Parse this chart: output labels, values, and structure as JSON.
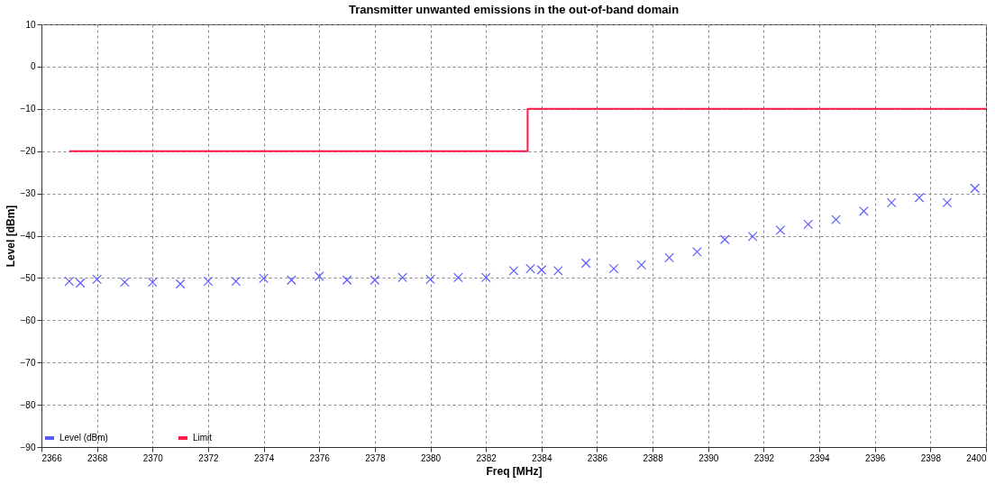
{
  "chart_data": {
    "type": "scatter",
    "title": "Transmitter unwanted emissions in the out-of-band domain",
    "xlabel": "Freq [MHz]",
    "ylabel": "Level [dBm]",
    "xlim": [
      2366,
      2400
    ],
    "xticks": [
      2366,
      2368,
      2370,
      2372,
      2374,
      2376,
      2378,
      2380,
      2382,
      2384,
      2386,
      2388,
      2390,
      2392,
      2394,
      2396,
      2398,
      2400
    ],
    "ylim": [
      -90,
      10
    ],
    "yticks": [
      -90,
      -80,
      -70,
      -60,
      -50,
      -40,
      -30,
      -20,
      -10,
      0,
      10
    ],
    "grid": true,
    "legend": "bottom left",
    "series": [
      {
        "name": "Level (dBm)",
        "marker": "cross",
        "color": "#5a5aff",
        "x": [
          2367.0,
          2367.4,
          2368.0,
          2369.0,
          2370.0,
          2371.0,
          2372.0,
          2373.0,
          2374.0,
          2375.0,
          2376.0,
          2377.0,
          2378.0,
          2379.0,
          2380.0,
          2381.0,
          2382.0,
          2383.0,
          2383.6,
          2384.0,
          2384.6,
          2385.6,
          2386.6,
          2387.6,
          2388.6,
          2389.6,
          2390.6,
          2391.6,
          2392.6,
          2393.6,
          2394.6,
          2395.6,
          2396.6,
          2397.6,
          2398.6,
          2399.6
        ],
        "values": [
          -50.8,
          -51.2,
          -50.3,
          -51.0,
          -51.0,
          -51.4,
          -50.8,
          -50.8,
          -50.1,
          -50.5,
          -49.6,
          -50.5,
          -50.5,
          -49.9,
          -50.3,
          -49.9,
          -49.9,
          -48.3,
          -47.8,
          -48.1,
          -48.3,
          -46.5,
          -47.8,
          -46.9,
          -45.2,
          -43.8,
          -40.9,
          -40.2,
          -38.7,
          -37.3,
          -36.2,
          -34.2,
          -32.2,
          -31.0,
          -32.2,
          -28.8
        ]
      },
      {
        "name": "Limit",
        "type": "line",
        "line_style": "solid",
        "color": "#ff1a4a",
        "x": [
          2367,
          2383.5,
          2383.5,
          2400
        ],
        "values": [
          -20,
          -20,
          -10,
          -10
        ]
      }
    ]
  }
}
